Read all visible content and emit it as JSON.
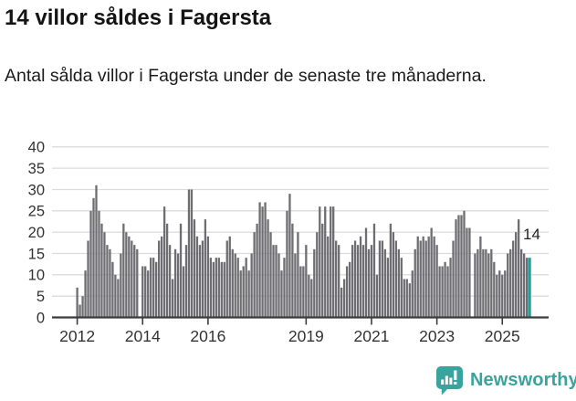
{
  "title": "14 villor såldes i Fagersta",
  "subtitle": "Antal sålda villor i Fagersta under de senaste tre månaderna.",
  "footer": {
    "brand": "Newsworthy"
  },
  "chart_data": {
    "type": "bar",
    "title": "14 villor såldes i Fagersta",
    "xlabel": "",
    "ylabel": "",
    "x_start": "2012-01",
    "x_end": "2025-11",
    "frequency": "monthly (rolling 3-month sum)",
    "ylim": [
      0,
      40
    ],
    "y_ticks": [
      0,
      5,
      10,
      15,
      20,
      25,
      30,
      35,
      40
    ],
    "x_ticks": [
      {
        "label": "2012",
        "month_index": 0
      },
      {
        "label": "2014",
        "month_index": 24
      },
      {
        "label": "2016",
        "month_index": 48
      },
      {
        "label": "2019",
        "month_index": 84
      },
      {
        "label": "2021",
        "month_index": 108
      },
      {
        "label": "2023",
        "month_index": 132
      },
      {
        "label": "2025",
        "month_index": 156
      }
    ],
    "grid": true,
    "legend_position": "none",
    "annotation": {
      "text": "14"
    },
    "highlight_last_bar": true,
    "colors": {
      "bar": "#6e6e72",
      "highlight": "#1aa29b",
      "grid": "#dcdcdc",
      "axis": "#3c3c3c",
      "axis_text": "#333333",
      "annotation_text": "#222222",
      "brand_teal": "#3aa39d"
    },
    "values": [
      7,
      3,
      5,
      11,
      18,
      25,
      28,
      31,
      25,
      22,
      20,
      17,
      16,
      13,
      10,
      9,
      15,
      22,
      20,
      19,
      18,
      17,
      16,
      0,
      12,
      12,
      11,
      14,
      14,
      13,
      18,
      19,
      26,
      22,
      17,
      9,
      16,
      15,
      22,
      12,
      17,
      30,
      30,
      23,
      19,
      17,
      18,
      23,
      19,
      14,
      13,
      14,
      14,
      13,
      13,
      18,
      19,
      16,
      15,
      14,
      11,
      12,
      14,
      11,
      15,
      20,
      22,
      27,
      26,
      27,
      23,
      20,
      17,
      17,
      15,
      11,
      14,
      25,
      29,
      22,
      15,
      20,
      12,
      12,
      17,
      10,
      9,
      16,
      20,
      26,
      22,
      26,
      19,
      26,
      26,
      18,
      17,
      7,
      9,
      12,
      13,
      17,
      18,
      17,
      19,
      17,
      21,
      16,
      17,
      22,
      10,
      18,
      18,
      16,
      14,
      22,
      20,
      18,
      16,
      14,
      9,
      9,
      8,
      11,
      16,
      19,
      18,
      19,
      18,
      19,
      21,
      19,
      17,
      12,
      12,
      13,
      12,
      14,
      18,
      23,
      24,
      24,
      25,
      21,
      21,
      0,
      15,
      16,
      19,
      16,
      16,
      15,
      16,
      13,
      10,
      11,
      10,
      11,
      15,
      16,
      18,
      20,
      23,
      16,
      15,
      14,
      14
    ]
  }
}
